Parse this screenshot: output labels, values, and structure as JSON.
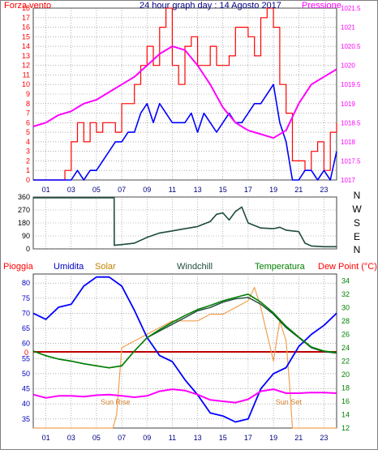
{
  "colors": {
    "red": "#ff0000",
    "magenta": "#ff00ff",
    "blue": "#0000ff",
    "darkgreen": "#1e4b3c",
    "green": "#008000",
    "orange": "#f0a050",
    "darkred": "#c00000",
    "navy": "#000080",
    "grid": "#808080"
  },
  "chart_data": [
    {
      "type": "line",
      "title": "24 hour graph day : 14 Agosto 2017",
      "left_label": "Forza vento",
      "right_label": "Pressione",
      "xlim": [
        0,
        24
      ],
      "x_ticks": [
        "01",
        "03",
        "05",
        "07",
        "09",
        "11",
        "13",
        "15",
        "17",
        "19",
        "21",
        "23"
      ],
      "y_left_ticks": [
        "0",
        "1",
        "2",
        "3",
        "4",
        "5",
        "6",
        "7",
        "8",
        "9",
        "10",
        "11",
        "12",
        "13",
        "14",
        "15",
        "16",
        "17",
        "18"
      ],
      "y_left_range": [
        0,
        18
      ],
      "y_right_ticks": [
        "1017",
        "1017.5",
        "1018",
        "1018.5",
        "1019",
        "1019.5",
        "1020",
        "1020.5",
        "1021",
        "1021.5"
      ],
      "y_right_range": [
        1017,
        1021.5
      ],
      "series": [
        {
          "name": "Forza vento (raffica)",
          "axis": "left",
          "x": [
            0,
            1,
            2,
            2.5,
            3,
            3.5,
            4,
            4.5,
            5,
            5.5,
            6,
            6.5,
            7,
            7.5,
            8,
            8.5,
            9,
            9.5,
            10,
            10.5,
            11,
            11.5,
            12,
            12.5,
            13,
            13.5,
            14,
            14.5,
            15,
            15.5,
            16,
            16.5,
            17,
            17.5,
            18,
            18.5,
            19,
            19.5,
            20,
            20.5,
            21,
            21.5,
            22,
            22.5,
            23,
            23.5,
            24
          ],
          "y": [
            0,
            0,
            0,
            1,
            4,
            6,
            4,
            6,
            5,
            6,
            6,
            5,
            8,
            8,
            10,
            12,
            14,
            12,
            16,
            18,
            12,
            10,
            14,
            15,
            12,
            12,
            14,
            12,
            12,
            13,
            16,
            16,
            15,
            13,
            17,
            18,
            16,
            10,
            7,
            2,
            2,
            1,
            3,
            4,
            1,
            5,
            6
          ]
        },
        {
          "name": "Forza vento (media)",
          "axis": "left",
          "x": [
            0,
            1,
            2,
            3,
            3.5,
            4,
            4.5,
            5,
            5.5,
            6,
            6.5,
            7,
            7.5,
            8,
            8.5,
            9,
            9.5,
            10,
            10.5,
            11,
            11.5,
            12,
            12.5,
            13,
            13.5,
            14,
            14.5,
            15,
            15.5,
            16,
            16.5,
            17,
            17.5,
            18,
            18.5,
            19,
            19.5,
            20,
            20.5,
            21,
            21.5,
            22,
            22.5,
            23,
            23.5,
            24
          ],
          "y": [
            0,
            0,
            0,
            0,
            1,
            0,
            1,
            1,
            2,
            3,
            4,
            4,
            5,
            5,
            7,
            8,
            6,
            8,
            7,
            6,
            6,
            6,
            7,
            5,
            7,
            6,
            5,
            6,
            7,
            6,
            6,
            7,
            8,
            8,
            9,
            10,
            6,
            4,
            0,
            0,
            1,
            1,
            0,
            1,
            0,
            3
          ]
        },
        {
          "name": "Pressione",
          "axis": "right",
          "x": [
            0,
            1,
            2,
            3,
            4,
            5,
            6,
            7,
            8,
            9,
            10,
            11,
            12,
            13,
            14,
            15,
            16,
            17,
            18,
            19,
            20,
            21,
            22,
            23,
            24
          ],
          "y": [
            1018.4,
            1018.5,
            1018.7,
            1018.8,
            1019.0,
            1019.1,
            1019.3,
            1019.5,
            1019.7,
            1020.0,
            1020.3,
            1020.5,
            1020.4,
            1020.0,
            1019.5,
            1018.9,
            1018.5,
            1018.3,
            1018.2,
            1018.1,
            1018.3,
            1019.0,
            1019.5,
            1019.7,
            1019.9
          ]
        }
      ]
    },
    {
      "type": "line",
      "title": "",
      "y_left_ticks": [
        "0",
        "90",
        "180",
        "270",
        "360"
      ],
      "y_range": [
        0,
        360
      ],
      "xlim": [
        0,
        24
      ],
      "compass": [
        "N",
        "W",
        "S",
        "E",
        "N"
      ],
      "series": [
        {
          "name": "Direzione vento",
          "x": [
            0,
            0.8,
            1,
            2,
            3,
            4,
            5,
            6,
            6.4,
            6.41,
            7,
            8,
            9,
            10,
            11,
            12,
            13,
            14,
            14.5,
            15,
            15.5,
            16,
            16.5,
            17,
            18,
            19,
            19.5,
            20,
            21,
            21.5,
            22,
            23,
            24
          ],
          "y": [
            355,
            355,
            355,
            355,
            355,
            355,
            355,
            355,
            355,
            25,
            30,
            40,
            80,
            110,
            125,
            140,
            155,
            190,
            240,
            250,
            200,
            260,
            290,
            180,
            145,
            140,
            150,
            130,
            120,
            40,
            20,
            15,
            15
          ]
        }
      ]
    },
    {
      "type": "line",
      "title": "",
      "labels": [
        "Pioggia",
        "Umidita",
        "Solar",
        "Windchill",
        "Temperatura",
        "Dew Point (°C)"
      ],
      "xlim": [
        0,
        24
      ],
      "x_ticks": [
        "01",
        "03",
        "05",
        "07",
        "09",
        "11",
        "13",
        "15",
        "17",
        "19",
        "21",
        "23"
      ],
      "y_left_ticks": [
        "35",
        "40",
        "45",
        "50",
        "55",
        "60",
        "65",
        "70",
        "75",
        "80"
      ],
      "y_left_range": [
        32,
        83
      ],
      "y_right_ticks": [
        "12",
        "14",
        "16",
        "18",
        "20",
        "22",
        "24",
        "26",
        "28",
        "30",
        "32",
        "34"
      ],
      "y_right_range": [
        12,
        35
      ],
      "rain_zero_label": "0",
      "annotations": [
        {
          "text": "Sun Rise",
          "x": 6.5,
          "y": 15.5
        },
        {
          "text": "Sun Set",
          "x": 20.2,
          "y": 15.5
        }
      ],
      "series": [
        {
          "name": "Umidita",
          "axis": "left",
          "x": [
            0,
            1,
            2,
            3,
            4,
            5,
            6,
            7,
            8,
            9,
            10,
            11,
            12,
            13,
            14,
            15,
            16,
            17,
            18,
            19,
            20,
            21,
            22,
            23,
            24
          ],
          "y": [
            70,
            68,
            72,
            73,
            79,
            82,
            82,
            79,
            71,
            62,
            56,
            54,
            48,
            43,
            37,
            36,
            34,
            35,
            45,
            50,
            52,
            59,
            63,
            66,
            70
          ]
        },
        {
          "name": "Solar",
          "axis": "right",
          "x": [
            0,
            6.3,
            6.6,
            7,
            8,
            9,
            10,
            11,
            12,
            13,
            14,
            15,
            16,
            17,
            17.5,
            18,
            18.5,
            19,
            19.5,
            20,
            20.3,
            20.5,
            21,
            24
          ],
          "y": [
            12,
            12,
            14,
            24,
            25,
            26,
            27,
            28,
            28,
            28,
            29,
            29,
            30,
            31,
            33,
            30,
            26,
            22,
            28,
            25,
            18,
            12,
            12,
            12
          ]
        },
        {
          "name": "Windchill",
          "axis": "right",
          "x": [
            0,
            1,
            2,
            3,
            4,
            5,
            6,
            7,
            8,
            9,
            10,
            11,
            12,
            13,
            14,
            15,
            16,
            17,
            18,
            19,
            20,
            21,
            22,
            23,
            24
          ],
          "y": [
            23.5,
            22.8,
            22.3,
            22,
            21.6,
            21.3,
            21,
            21.3,
            23.5,
            25.5,
            26.5,
            27.5,
            28.5,
            29.5,
            30,
            30.8,
            31.3,
            31.5,
            30.5,
            29,
            27,
            25.5,
            24,
            23.4,
            23.2
          ]
        },
        {
          "name": "Temperatura",
          "axis": "right",
          "x": [
            0,
            1,
            2,
            3,
            4,
            5,
            6,
            7,
            8,
            9,
            10,
            11,
            12,
            13,
            14,
            15,
            16,
            17,
            18,
            19,
            20,
            21,
            22,
            23,
            24
          ],
          "y": [
            23.5,
            22.8,
            22.3,
            22,
            21.6,
            21.3,
            21,
            21.3,
            23.5,
            25.5,
            26.7,
            27.8,
            28.8,
            29.7,
            30.3,
            31,
            31.5,
            32,
            30.8,
            29.2,
            27.2,
            25.6,
            24.1,
            23.5,
            23.3
          ]
        },
        {
          "name": "Dew Point",
          "axis": "right",
          "x": [
            0,
            1,
            2,
            3,
            4,
            5,
            6,
            7,
            8,
            9,
            10,
            11,
            12,
            13,
            14,
            15,
            16,
            17,
            18,
            19,
            20,
            21,
            22,
            23,
            24
          ],
          "y": [
            17,
            16.5,
            16.8,
            16.8,
            16.7,
            16.9,
            17,
            16.8,
            16.6,
            16.8,
            17.5,
            17.8,
            17.6,
            17,
            16.2,
            16,
            15.8,
            16.3,
            17.5,
            17.8,
            17.2,
            17.2,
            17.3,
            17.3,
            17.2
          ]
        }
      ]
    }
  ]
}
